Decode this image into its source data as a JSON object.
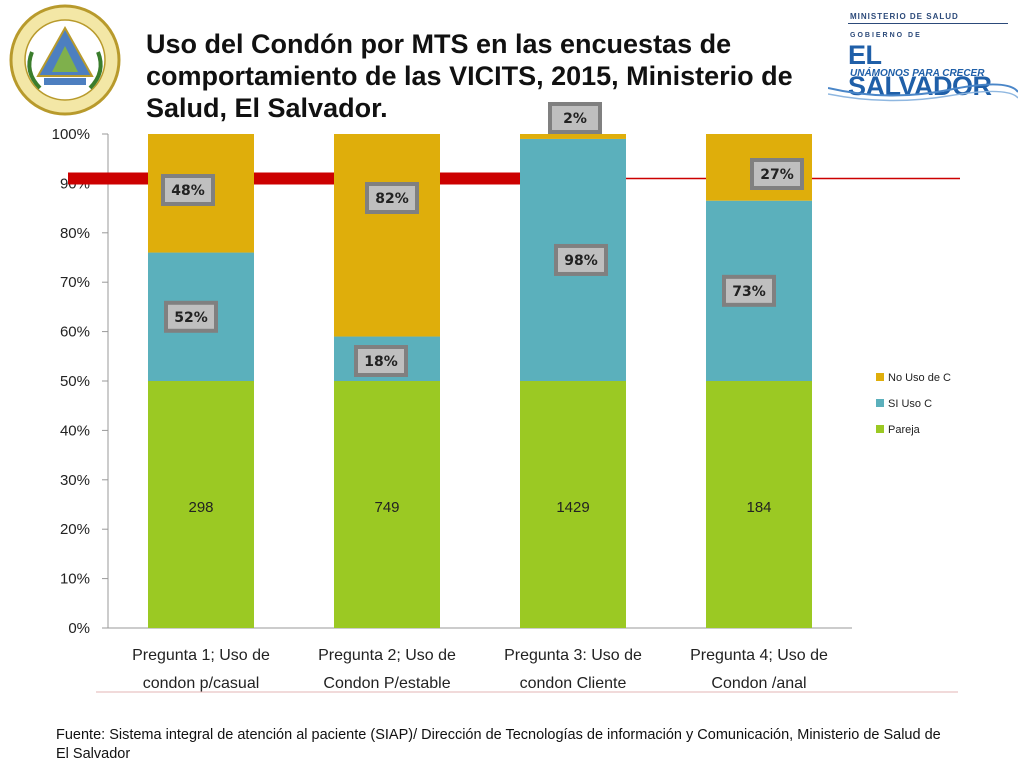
{
  "header": {
    "title": "Uso del Condón por MTS en las encuestas de comportamiento de las VICITS, 2015, Ministerio de Salud, El Salvador.",
    "logo_ministry": "MINISTERIO DE SALUD",
    "logo_gov_label": "GOBIERNO DE",
    "logo_country": "EL SALVADOR",
    "logo_slogan": "UNÁMONOS PARA CRECER"
  },
  "colors": {
    "no_uso": "#DFAE0B",
    "si_uso": "#5BB0BC",
    "pareja": "#9BC923",
    "reference_line": "#CC0000",
    "label_box": "#808080"
  },
  "chart_data": {
    "type": "bar",
    "stacked": true,
    "categories": [
      [
        "Pregunta 1; Uso de",
        "condon p/casual"
      ],
      [
        "Pregunta 2; Uso de",
        "Condon P/estable"
      ],
      [
        "Pregunta 3: Uso de",
        "condon Cliente"
      ],
      [
        "Pregunta 4; Uso de",
        "Condon /anal"
      ]
    ],
    "series": [
      {
        "name": "Pareja",
        "color": "#9BC923",
        "values": [
          50,
          50,
          50,
          50
        ]
      },
      {
        "name": "SI Uso C",
        "color": "#5BB0BC",
        "values": [
          26,
          9,
          49,
          36.5
        ]
      },
      {
        "name": "No Uso de C",
        "color": "#DFAE0B",
        "values": [
          24,
          41,
          1,
          13.5
        ]
      }
    ],
    "pareja_labels": [
      "298",
      "749",
      "1429",
      "184"
    ],
    "si_uso_labels": [
      "52%",
      "18%",
      "98%",
      "73%"
    ],
    "no_uso_labels": [
      "48%",
      "82%",
      "2%",
      "27%"
    ],
    "y_ticks": [
      "0%",
      "10%",
      "20%",
      "30%",
      "40%",
      "50%",
      "60%",
      "70%",
      "80%",
      "90%",
      "100%"
    ],
    "ylim": [
      0,
      100
    ],
    "reference_line_value": 91,
    "legend": [
      "No Uso de C",
      "SI Uso C",
      "Pareja"
    ],
    "legend_position": "right"
  },
  "footer": {
    "source": "Fuente: Sistema integral de atención al paciente (SIAP)/ Dirección de Tecnologías de información y Comunicación, Ministerio de Salud de El Salvador"
  }
}
